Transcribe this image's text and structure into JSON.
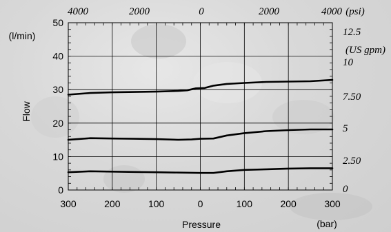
{
  "chart_data": {
    "type": "line",
    "xlabel": "Pressure",
    "x_unit_label": "(bar)",
    "ylabel": "Flow",
    "y_unit_label": "(l/min)",
    "top_axis_unit_label": "(psi)",
    "right_axis_unit_label": "(US gpm)",
    "x_tick_labels": [
      "300",
      "200",
      "100",
      "0",
      "100",
      "200",
      "300"
    ],
    "y_tick_labels": [
      "0",
      "10",
      "20",
      "30",
      "40",
      "50"
    ],
    "top_tick_labels": [
      "4000",
      "2000",
      "0",
      "2000",
      "4000"
    ],
    "right_tick_labels": [
      "0",
      "2.50",
      "5",
      "7.50",
      "10",
      "12.5"
    ],
    "xlim": [
      -300,
      300
    ],
    "ylim": [
      0,
      50
    ],
    "grid": true,
    "series": [
      {
        "x": [
          -300,
          -290,
          -250,
          -200,
          -150,
          -100,
          -50,
          -30,
          -10,
          10,
          30,
          60,
          100,
          150,
          200,
          250,
          300
        ],
        "y": [
          28.5,
          28.6,
          29.0,
          29.2,
          29.3,
          29.4,
          29.6,
          29.8,
          30.4,
          30.5,
          31.2,
          31.7,
          32.0,
          32.3,
          32.4,
          32.5,
          32.9
        ]
      },
      {
        "x": [
          -300,
          -250,
          -200,
          -150,
          -100,
          -50,
          -20,
          0,
          30,
          60,
          100,
          150,
          200,
          250,
          300
        ],
        "y": [
          15.0,
          15.5,
          15.4,
          15.3,
          15.2,
          15.0,
          15.1,
          15.3,
          15.4,
          16.3,
          17.0,
          17.6,
          17.9,
          18.1,
          18.1
        ]
      },
      {
        "x": [
          -300,
          -250,
          -200,
          -150,
          -100,
          -50,
          0,
          30,
          60,
          100,
          150,
          200,
          250,
          300
        ],
        "y": [
          5.3,
          5.6,
          5.5,
          5.4,
          5.3,
          5.2,
          5.1,
          5.1,
          5.6,
          6.0,
          6.2,
          6.4,
          6.5,
          6.5
        ]
      }
    ]
  }
}
